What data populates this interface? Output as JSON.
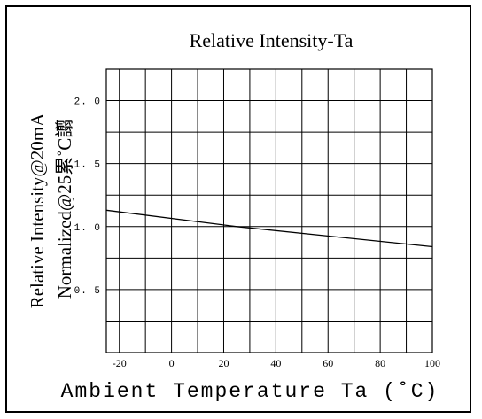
{
  "chart_data": {
    "type": "line",
    "title": "Relative Intensity-Ta",
    "xlabel": "Ambient Temperature Ta (˚C)",
    "ylabel_lines": [
      "Relative Intensity@20mA",
      "Normalized@25累˚C譾"
    ],
    "xlim": [
      -25,
      100
    ],
    "ylim": [
      0,
      2.25
    ],
    "grid": true,
    "x_ticks": [
      -20,
      0,
      20,
      40,
      60,
      80,
      100
    ],
    "x_tick_labels": [
      "-20",
      "0",
      "20",
      "40",
      "60",
      "80",
      "100"
    ],
    "y_ticks": [
      0.5,
      1.0,
      1.5,
      2.0
    ],
    "y_tick_labels": [
      "0. 5",
      "1. 0",
      "1. 5",
      "2. 0"
    ],
    "series": [
      {
        "x": [
          -25,
          25,
          100
        ],
        "y": [
          1.13,
          1.0,
          0.84
        ]
      }
    ],
    "colors": {
      "line": "#000000",
      "grid": "#000000",
      "background": "#ffffff"
    }
  }
}
